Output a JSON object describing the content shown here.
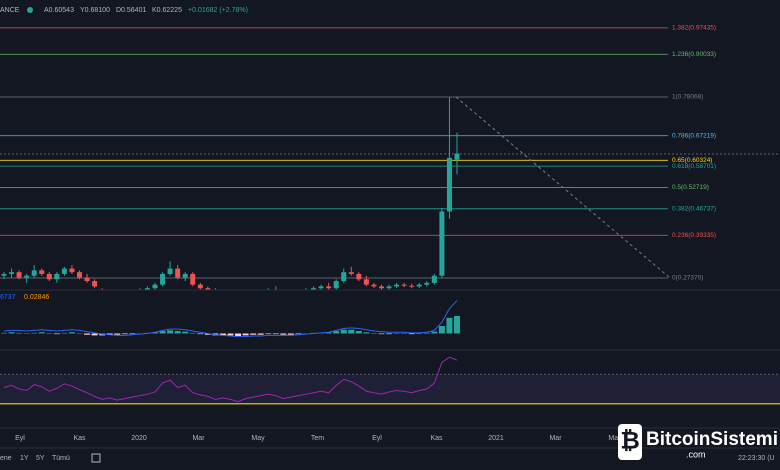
{
  "chart_data": {
    "type": "candlestick",
    "header": {
      "symbol": "ANCE",
      "open": "A0.60543",
      "high": "Y0.68100",
      "low": "D0.56401",
      "close": "K0.62225",
      "change": "+0.01682 (+2.78%)"
    },
    "ylim": [
      0.24,
      1.0524
    ],
    "up_color": "#26a69a",
    "down_color": "#ef5350",
    "fib_levels": [
      {
        "label": "1.382(0.97435)",
        "value": 0.97435,
        "color": "#ef5350"
      },
      {
        "label": "1.236(0.90033)",
        "value": 0.90033,
        "color": "#66bb6a"
      },
      {
        "label": "1(0.78068)",
        "value": 0.78068,
        "color": "#787b86"
      },
      {
        "label": "0.786(0.67219)",
        "value": 0.67219,
        "color": "#64b5f6"
      },
      {
        "label": "0.65(0.60324)",
        "value": 0.60324,
        "color": "#f5d90a"
      },
      {
        "label": "0.618(0.58701)",
        "value": 0.58701,
        "color": "#26a69a"
      },
      {
        "label": "0.5(0.52719)",
        "value": 0.52719,
        "color": "#66bb6a"
      },
      {
        "label": "0.382(0.46737)",
        "value": 0.46737,
        "color": "#26a69a"
      },
      {
        "label": "0.236(0.39335)",
        "value": 0.39335,
        "color": "#ef5350"
      },
      {
        "label": "0(0.27370)",
        "value": 0.2737,
        "color": "#787b86"
      }
    ],
    "candles": [
      [
        0.28,
        0.29,
        0.27,
        0.285
      ],
      [
        0.285,
        0.3,
        0.275,
        0.29
      ],
      [
        0.29,
        0.295,
        0.27,
        0.275
      ],
      [
        0.275,
        0.285,
        0.26,
        0.28
      ],
      [
        0.28,
        0.31,
        0.275,
        0.295
      ],
      [
        0.295,
        0.3,
        0.28,
        0.285
      ],
      [
        0.285,
        0.29,
        0.265,
        0.27
      ],
      [
        0.27,
        0.29,
        0.26,
        0.285
      ],
      [
        0.285,
        0.305,
        0.28,
        0.3
      ],
      [
        0.3,
        0.31,
        0.285,
        0.29
      ],
      [
        0.29,
        0.295,
        0.27,
        0.275
      ],
      [
        0.275,
        0.285,
        0.26,
        0.265
      ],
      [
        0.265,
        0.27,
        0.245,
        0.25
      ],
      [
        0.24,
        0.245,
        0.225,
        0.23
      ],
      [
        0.23,
        0.24,
        0.22,
        0.235
      ],
      [
        0.235,
        0.24,
        0.22,
        0.225
      ],
      [
        0.225,
        0.235,
        0.215,
        0.23
      ],
      [
        0.23,
        0.24,
        0.22,
        0.235
      ],
      [
        0.235,
        0.245,
        0.225,
        0.24
      ],
      [
        0.24,
        0.25,
        0.23,
        0.245
      ],
      [
        0.245,
        0.26,
        0.24,
        0.255
      ],
      [
        0.255,
        0.29,
        0.25,
        0.285
      ],
      [
        0.285,
        0.32,
        0.28,
        0.3
      ],
      [
        0.3,
        0.31,
        0.27,
        0.275
      ],
      [
        0.275,
        0.29,
        0.265,
        0.285
      ],
      [
        0.285,
        0.29,
        0.25,
        0.255
      ],
      [
        0.255,
        0.26,
        0.24,
        0.245
      ],
      [
        0.245,
        0.25,
        0.235,
        0.24
      ],
      [
        0.24,
        0.245,
        0.225,
        0.23
      ],
      [
        0.23,
        0.24,
        0.22,
        0.235
      ],
      [
        0.235,
        0.24,
        0.225,
        0.228
      ],
      [
        0.228,
        0.235,
        0.215,
        0.22
      ],
      [
        0.22,
        0.23,
        0.21,
        0.225
      ],
      [
        0.225,
        0.235,
        0.22,
        0.23
      ],
      [
        0.23,
        0.24,
        0.225,
        0.235
      ],
      [
        0.235,
        0.245,
        0.23,
        0.24
      ],
      [
        0.24,
        0.25,
        0.23,
        0.235
      ],
      [
        0.235,
        0.24,
        0.22,
        0.225
      ],
      [
        0.225,
        0.235,
        0.215,
        0.23
      ],
      [
        0.23,
        0.24,
        0.225,
        0.235
      ],
      [
        0.235,
        0.245,
        0.23,
        0.24
      ],
      [
        0.24,
        0.25,
        0.235,
        0.245
      ],
      [
        0.245,
        0.255,
        0.24,
        0.25
      ],
      [
        0.25,
        0.26,
        0.24,
        0.245
      ],
      [
        0.245,
        0.27,
        0.24,
        0.265
      ],
      [
        0.265,
        0.3,
        0.26,
        0.29
      ],
      [
        0.29,
        0.305,
        0.28,
        0.285
      ],
      [
        0.285,
        0.29,
        0.265,
        0.27
      ],
      [
        0.27,
        0.28,
        0.25,
        0.255
      ],
      [
        0.255,
        0.26,
        0.245,
        0.25
      ],
      [
        0.25,
        0.255,
        0.24,
        0.245
      ],
      [
        0.245,
        0.255,
        0.24,
        0.25
      ],
      [
        0.25,
        0.26,
        0.245,
        0.255
      ],
      [
        0.255,
        0.26,
        0.248,
        0.252
      ],
      [
        0.252,
        0.258,
        0.245,
        0.25
      ],
      [
        0.25,
        0.26,
        0.245,
        0.255
      ],
      [
        0.255,
        0.265,
        0.25,
        0.26
      ],
      [
        0.26,
        0.285,
        0.255,
        0.28
      ],
      [
        0.28,
        0.47,
        0.275,
        0.46
      ],
      [
        0.46,
        0.78,
        0.44,
        0.61
      ],
      [
        0.60543,
        0.681,
        0.56401,
        0.62225
      ]
    ],
    "macd": {
      "labels": [
        "6737",
        "0.02846"
      ],
      "ylim": [
        -0.02,
        0.06
      ],
      "line_color": "#2962ff",
      "histogram": [
        0.001,
        0.002,
        0.001,
        0,
        0.001,
        0.002,
        0,
        -0.001,
        0.001,
        0.002,
        0,
        -0.002,
        -0.003,
        -0.003,
        -0.002,
        -0.002,
        -0.001,
        -0.001,
        0,
        0.001,
        0.002,
        0.004,
        0.005,
        0.004,
        0.003,
        0.001,
        -0.001,
        -0.002,
        -0.003,
        -0.003,
        -0.003,
        -0.004,
        -0.003,
        -0.002,
        -0.002,
        -0.001,
        -0.001,
        -0.002,
        -0.002,
        -0.001,
        0,
        0.001,
        0.001,
        0.002,
        0.004,
        0.006,
        0.006,
        0.004,
        0.002,
        0,
        -0.001,
        -0.001,
        0,
        0,
        -0.001,
        0,
        0.001,
        0.003,
        0.012,
        0.025,
        0.028
      ],
      "line": [
        0.004,
        0.005,
        0.005,
        0.004,
        0.005,
        0.006,
        0.005,
        0.004,
        0.005,
        0.006,
        0.005,
        0.003,
        0.001,
        -0.001,
        -0.002,
        -0.003,
        -0.003,
        -0.002,
        -0.001,
        0,
        0.002,
        0.005,
        0.007,
        0.007,
        0.006,
        0.004,
        0.002,
        0,
        -0.002,
        -0.003,
        -0.004,
        -0.005,
        -0.005,
        -0.004,
        -0.004,
        -0.003,
        -0.003,
        -0.003,
        -0.003,
        -0.002,
        -0.001,
        0,
        0.001,
        0.002,
        0.005,
        0.008,
        0.009,
        0.008,
        0.006,
        0.004,
        0.003,
        0.002,
        0.002,
        0.002,
        0.001,
        0.001,
        0.002,
        0.005,
        0.018,
        0.04,
        0.0527
      ]
    },
    "rsi": {
      "ylim": [
        0,
        100
      ],
      "bands": [
        30,
        70
      ],
      "color": "#9c27b0",
      "values": [
        52,
        55,
        50,
        48,
        56,
        53,
        47,
        51,
        57,
        54,
        49,
        45,
        40,
        36,
        38,
        35,
        37,
        39,
        41,
        43,
        46,
        58,
        62,
        52,
        55,
        45,
        42,
        40,
        36,
        38,
        36,
        33,
        37,
        39,
        41,
        43,
        41,
        37,
        39,
        41,
        43,
        45,
        47,
        45,
        55,
        63,
        60,
        54,
        47,
        45,
        43,
        46,
        48,
        47,
        45,
        48,
        50,
        58,
        86,
        93,
        89
      ]
    },
    "x_labels": [
      "Eyl",
      "Kas",
      "2020",
      "Mar",
      "May",
      "Tem",
      "Eyl",
      "Kas",
      "2021",
      "Mar",
      "May"
    ]
  },
  "ui": {
    "ranges": [
      "ene",
      "1Y",
      "5Y",
      "Tümü"
    ],
    "clock": "22:23:30 (U"
  },
  "watermark": {
    "name": "BitcoinSistemi",
    "domain": ".com"
  }
}
